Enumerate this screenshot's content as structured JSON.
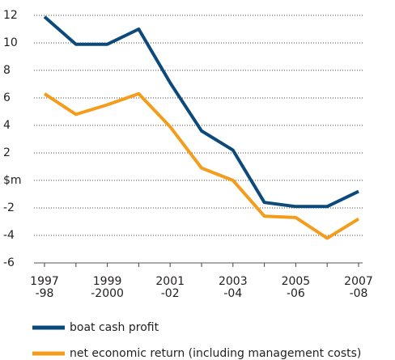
{
  "chart_data": {
    "type": "line",
    "categories": [
      [
        "1997",
        "-98"
      ],
      null,
      [
        "1999",
        "-2000"
      ],
      null,
      [
        "2001",
        "-02"
      ],
      null,
      [
        "2003",
        "-04"
      ],
      null,
      [
        "2005",
        "-06"
      ],
      null,
      [
        "2007",
        "-08"
      ]
    ],
    "series": [
      {
        "name": "boat cash profit",
        "color": "#0d4a7c",
        "values": [
          11.9,
          9.9,
          9.9,
          11.0,
          7.1,
          3.6,
          2.2,
          -1.6,
          -1.9,
          -1.9,
          -0.8
        ]
      },
      {
        "name": "net economic return (including management costs)",
        "color": "#f49c1c",
        "values": [
          6.3,
          4.8,
          5.5,
          6.3,
          3.9,
          0.9,
          0.0,
          -2.6,
          -2.7,
          -4.2,
          -2.8
        ]
      }
    ],
    "ylim": [
      -6,
      12
    ],
    "yticks": [
      -6,
      -4,
      -2,
      {
        "value": 0,
        "label": "$m"
      },
      2,
      4,
      6,
      8,
      10,
      12
    ],
    "grid": true
  }
}
